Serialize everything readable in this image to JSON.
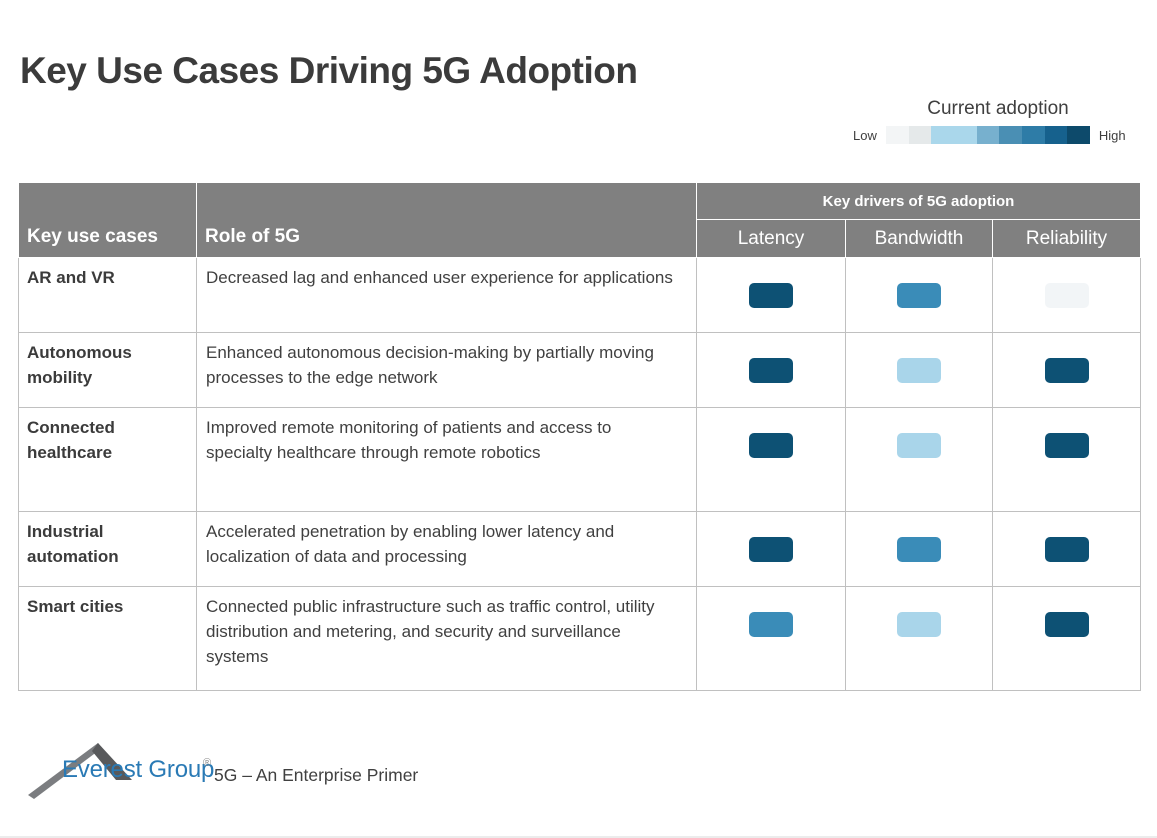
{
  "page": {
    "title": "Key Use Cases Driving 5G Adoption"
  },
  "legend": {
    "title": "Current adoption",
    "low_label": "Low",
    "high_label": "High",
    "scale_colors": [
      "#f3f5f6",
      "#e5e9ea",
      "#aad7eb",
      "#aad7eb",
      "#77b0ce",
      "#4a8fb4",
      "#2e7ca7",
      "#16618d",
      "#0d4a6b"
    ],
    "level_colors": {
      "low": "#f2f5f7",
      "low-medium": "#a9d5ea",
      "medium": "#3a8cb8",
      "high": "#0d5174"
    }
  },
  "table": {
    "col_use_case": "Key use cases",
    "col_role": "Role of 5G",
    "drivers_group": "Key drivers of 5G adoption",
    "col_latency": "Latency",
    "col_bandwidth": "Bandwidth",
    "col_reliability": "Reliability",
    "rows": [
      {
        "use_case": "AR and VR",
        "role": "Decreased lag and enhanced user experience for applications",
        "latency": "high",
        "bandwidth": "medium",
        "reliability": "low"
      },
      {
        "use_case": "Autonomous mobility",
        "role": "Enhanced autonomous decision-making by partially moving processes to the edge network",
        "latency": "high",
        "bandwidth": "low-medium",
        "reliability": "high"
      },
      {
        "use_case": "Connected healthcare",
        "role": "Improved remote monitoring of patients and access to specialty healthcare through remote robotics",
        "latency": "high",
        "bandwidth": "low-medium",
        "reliability": "high"
      },
      {
        "use_case": "Industrial automation",
        "role": "Accelerated penetration by enabling lower latency and localization of data and processing",
        "latency": "high",
        "bandwidth": "medium",
        "reliability": "high"
      },
      {
        "use_case": "Smart cities",
        "role": "Connected public infrastructure such as traffic control, utility distribution and metering, and security and surveillance systems",
        "latency": "medium",
        "bandwidth": "low-medium",
        "reliability": "high"
      }
    ]
  },
  "footer": {
    "brand": "Everest Group",
    "registered": "®",
    "tagline": "5G – An Enterprise Primer",
    "brand_color": "#2a7ab5"
  },
  "chart_data": {
    "type": "heatmap",
    "title": "Key Use Cases Driving 5G Adoption",
    "legend": {
      "title": "Current adoption",
      "scale_labels": [
        "Low",
        "High"
      ],
      "position": "top-right"
    },
    "columns": [
      "Latency",
      "Bandwidth",
      "Reliability"
    ],
    "rows": [
      "AR and VR",
      "Autonomous mobility",
      "Connected healthcare",
      "Industrial automation",
      "Smart cities"
    ],
    "value_scale": "0=low, 1=low-medium, 2=medium, 3=high",
    "series": [
      {
        "name": "AR and VR",
        "values": [
          3,
          2,
          0
        ]
      },
      {
        "name": "Autonomous mobility",
        "values": [
          3,
          1,
          3
        ]
      },
      {
        "name": "Connected healthcare",
        "values": [
          3,
          1,
          3
        ]
      },
      {
        "name": "Industrial automation",
        "values": [
          3,
          2,
          3
        ]
      },
      {
        "name": "Smart cities",
        "values": [
          2,
          1,
          3
        ]
      }
    ]
  }
}
